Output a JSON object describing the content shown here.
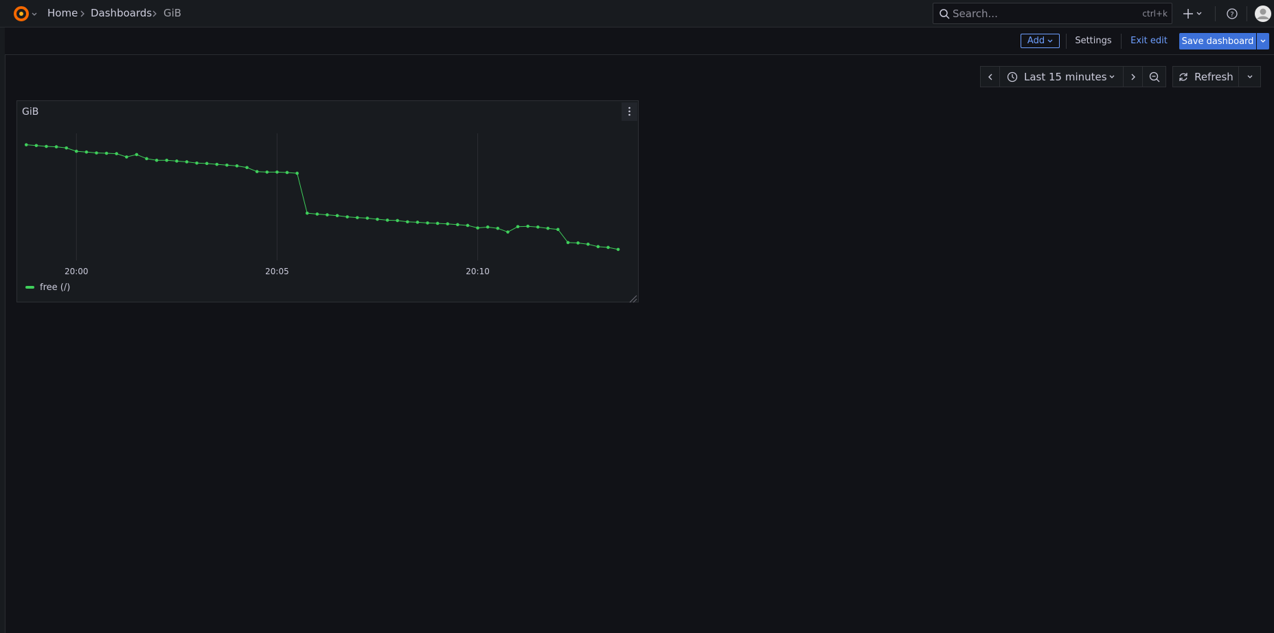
{
  "nav": {
    "breadcrumbs": [
      "Home",
      "Dashboards",
      "GiB"
    ],
    "search_placeholder": "Search...",
    "search_shortcut": "ctrl+k"
  },
  "toolbar": {
    "add": "Add",
    "settings": "Settings",
    "exit_edit": "Exit edit",
    "save": "Save dashboard"
  },
  "time_controls": {
    "range": "Last 15 minutes",
    "refresh": "Refresh"
  },
  "chart_data": {
    "type": "line",
    "title": "GiB",
    "x": [
      -1.25,
      -1,
      -0.75,
      -0.5,
      -0.25,
      0,
      0.25,
      0.5,
      0.75,
      1,
      1.25,
      1.5,
      1.75,
      2,
      2.25,
      2.5,
      2.75,
      3,
      3.25,
      3.5,
      3.75,
      4,
      4.25,
      4.5,
      4.75,
      5,
      5.25,
      5.5,
      5.75,
      6,
      6.25,
      6.5,
      6.75,
      7,
      7.25,
      7.5,
      7.75,
      8,
      8.25,
      8.5,
      8.75,
      9,
      9.25,
      9.5,
      9.75,
      10,
      10.25,
      10.5,
      10.75,
      11,
      11.25,
      11.5,
      11.75,
      12,
      12.25,
      12.5,
      12.75,
      13,
      13.25,
      13.5
    ],
    "xlim": [
      -1.34,
      13.79
    ],
    "xticks": [
      {
        "value": 0,
        "label": "20:00"
      },
      {
        "value": 5,
        "label": "20:05"
      },
      {
        "value": 10,
        "label": "20:10"
      }
    ],
    "ylim": [
      0,
      100
    ],
    "grid": true,
    "series": [
      {
        "name": "free (/)",
        "color": "#3fcf5b",
        "values": [
          91.0,
          90.4,
          89.7,
          89.4,
          88.5,
          85.9,
          85.3,
          84.6,
          84.3,
          84.0,
          81.4,
          83.3,
          80.1,
          78.8,
          78.8,
          78.2,
          77.6,
          76.6,
          76.3,
          75.6,
          75.0,
          74.4,
          73.1,
          69.9,
          69.5,
          69.5,
          69.2,
          68.6,
          37.2,
          36.5,
          35.9,
          35.3,
          34.3,
          33.7,
          33.3,
          32.4,
          31.7,
          31.4,
          30.4,
          30.1,
          29.5,
          29.2,
          28.8,
          28.2,
          27.6,
          25.6,
          26.3,
          25.3,
          22.4,
          26.6,
          26.9,
          26.3,
          25.3,
          24.4,
          14.1,
          13.8,
          12.8,
          10.9,
          10.3,
          8.7
        ]
      }
    ]
  }
}
